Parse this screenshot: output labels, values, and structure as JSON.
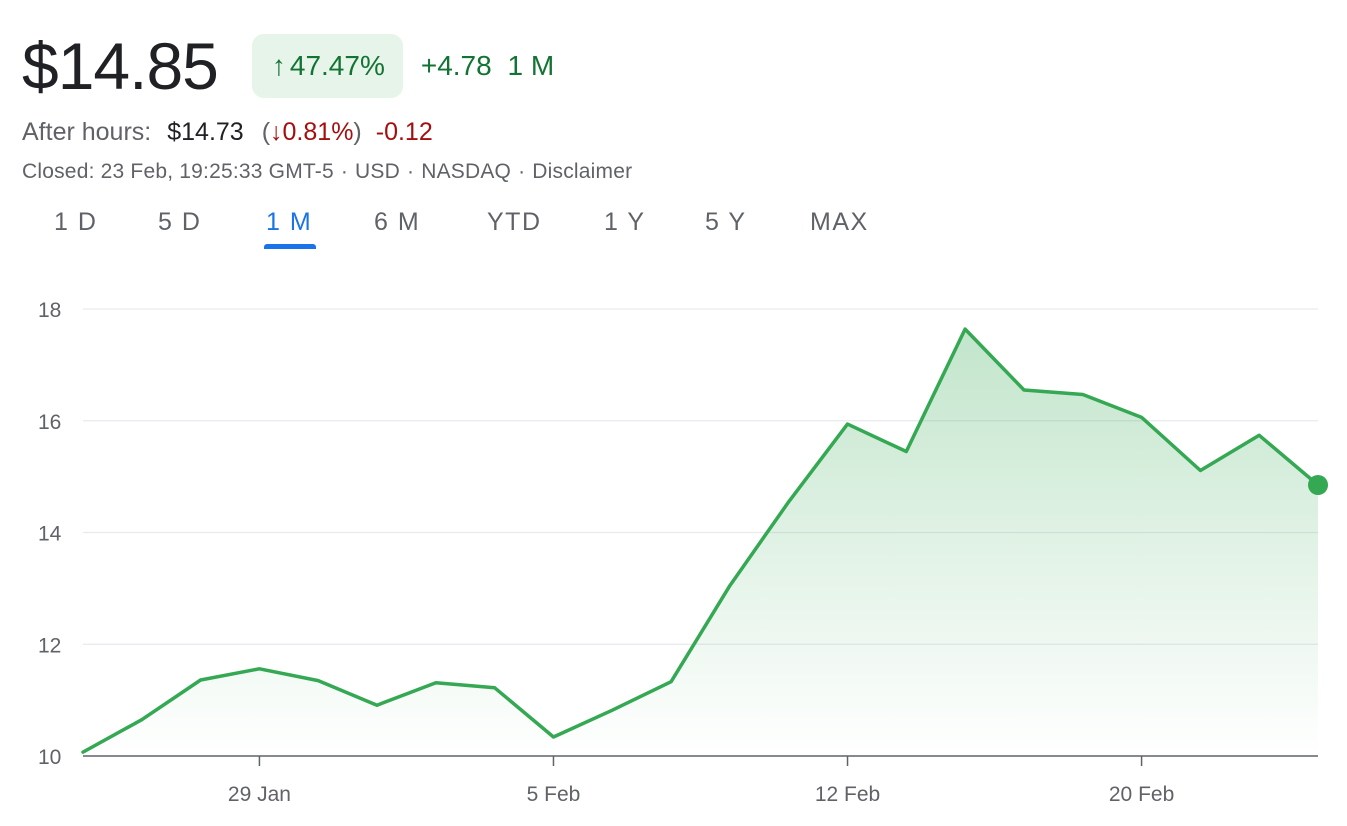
{
  "quote": {
    "price": "$14.85",
    "change_arrow": "↑",
    "change_pct": "47.47%",
    "change_abs": "+4.78",
    "change_period": "1 M"
  },
  "after_hours": {
    "label": "After hours:",
    "price": "$14.73",
    "paren_open": "(",
    "arrow": "↓",
    "pct": "0.81%",
    "paren_close": ")",
    "abs": "-0.12"
  },
  "meta": {
    "closed": "Closed: 23 Feb, 19:25:33 GMT-5",
    "separator": "·",
    "currency": "USD",
    "exchange": "NASDAQ",
    "disclaimer": "Disclaimer"
  },
  "tabs": [
    {
      "label": "1 D",
      "active": false
    },
    {
      "label": "5 D",
      "active": false
    },
    {
      "label": "1 M",
      "active": true
    },
    {
      "label": "6 M",
      "active": false
    },
    {
      "label": "YTD",
      "active": false
    },
    {
      "label": "1 Y",
      "active": false
    },
    {
      "label": "5 Y",
      "active": false
    },
    {
      "label": "MAX",
      "active": false
    }
  ],
  "colors": {
    "up": "#137333",
    "line": "#34a853",
    "down": "#a50e0e",
    "accent": "#1a73e8",
    "grid": "#e8eaed"
  },
  "chart_data": {
    "type": "area",
    "title": "",
    "xlabel": "",
    "ylabel": "",
    "ylim": [
      10,
      18
    ],
    "yticks": [
      10,
      12,
      14,
      16,
      18
    ],
    "grid": true,
    "x": [
      "2024-01-24",
      "2024-01-25",
      "2024-01-26",
      "2024-01-29",
      "2024-01-30",
      "2024-01-31",
      "2024-02-01",
      "2024-02-02",
      "2024-02-05",
      "2024-02-06",
      "2024-02-07",
      "2024-02-08",
      "2024-02-09",
      "2024-02-12",
      "2024-02-13",
      "2024-02-14",
      "2024-02-15",
      "2024-02-16",
      "2024-02-20",
      "2024-02-21",
      "2024-02-22",
      "2024-02-23"
    ],
    "xticks": [
      {
        "label": "29 Jan",
        "date": "2024-01-29"
      },
      {
        "label": "5 Feb",
        "date": "2024-02-05"
      },
      {
        "label": "12 Feb",
        "date": "2024-02-12"
      },
      {
        "label": "20 Feb",
        "date": "2024-02-20"
      }
    ],
    "series": [
      {
        "values": [
          10.07,
          10.65,
          11.36,
          11.56,
          11.35,
          10.91,
          11.31,
          11.22,
          10.34,
          10.82,
          11.33,
          13.05,
          14.55,
          15.94,
          15.45,
          17.64,
          16.55,
          16.47,
          16.06,
          15.11,
          15.74,
          14.85
        ]
      }
    ],
    "last_marker": true
  }
}
